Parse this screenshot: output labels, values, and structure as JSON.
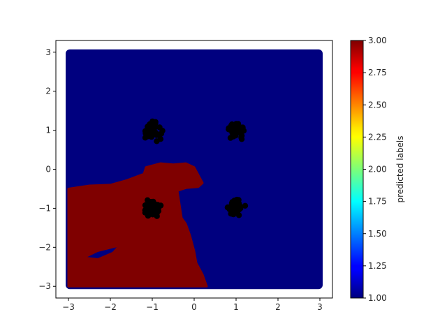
{
  "chart_data": {
    "type": "scatter",
    "title": "",
    "xlabel": "",
    "ylabel": "",
    "xlim": [
      -3.3,
      3.3
    ],
    "ylim": [
      -3.3,
      3.3
    ],
    "xticks": [
      -3,
      -2,
      -1,
      0,
      1,
      2,
      3
    ],
    "yticks": [
      -3,
      -2,
      -1,
      0,
      1,
      2,
      3
    ],
    "grid": false,
    "legend": "none",
    "background_region": {
      "x_range": [
        -3,
        3
      ],
      "y_range": [
        -3,
        3
      ],
      "label": 1,
      "color": "#00007f"
    },
    "decision_regions": [
      {
        "label": 3,
        "color": "#7f0000",
        "boundary": [
          [
            -3.0,
            -3.0
          ],
          [
            -3.0,
            -0.5
          ],
          [
            -2.5,
            -0.42
          ],
          [
            -2.0,
            -0.4
          ],
          [
            -1.6,
            -0.28
          ],
          [
            -1.2,
            -0.12
          ],
          [
            -1.15,
            0.05
          ],
          [
            -0.8,
            0.15
          ],
          [
            -0.5,
            0.12
          ],
          [
            -0.2,
            0.15
          ],
          [
            0.0,
            0.05
          ],
          [
            0.2,
            -0.35
          ],
          [
            0.1,
            -0.45
          ],
          [
            -0.2,
            -0.48
          ],
          [
            -0.4,
            -0.55
          ],
          [
            -0.35,
            -0.9
          ],
          [
            -0.3,
            -1.25
          ],
          [
            -0.2,
            -1.4
          ],
          [
            -0.1,
            -1.7
          ],
          [
            0.0,
            -2.1
          ],
          [
            0.05,
            -2.4
          ],
          [
            0.2,
            -2.7
          ],
          [
            0.3,
            -3.0
          ]
        ]
      }
    ],
    "inset_regions": [
      {
        "label": 1,
        "color": "#00007f",
        "boundary": [
          [
            -2.55,
            -2.25
          ],
          [
            -2.3,
            -2.12
          ],
          [
            -1.85,
            -2.0
          ],
          [
            -1.95,
            -2.12
          ],
          [
            -2.3,
            -2.28
          ]
        ]
      }
    ],
    "clusters": [
      {
        "center": [
          -1.0,
          1.0
        ],
        "n": 45,
        "spread": 0.13
      },
      {
        "center": [
          1.0,
          1.0
        ],
        "n": 45,
        "spread": 0.13
      },
      {
        "center": [
          -1.0,
          -1.0
        ],
        "n": 45,
        "spread": 0.13
      },
      {
        "center": [
          1.0,
          -1.0
        ],
        "n": 45,
        "spread": 0.13
      }
    ],
    "point_color": "#000000",
    "colorbar": {
      "label": "predicted labels",
      "min": 1.0,
      "max": 3.0,
      "colormap": "jet",
      "ticks": [
        "1.00",
        "1.25",
        "1.50",
        "1.75",
        "2.00",
        "2.25",
        "2.50",
        "2.75",
        "3.00"
      ]
    }
  }
}
